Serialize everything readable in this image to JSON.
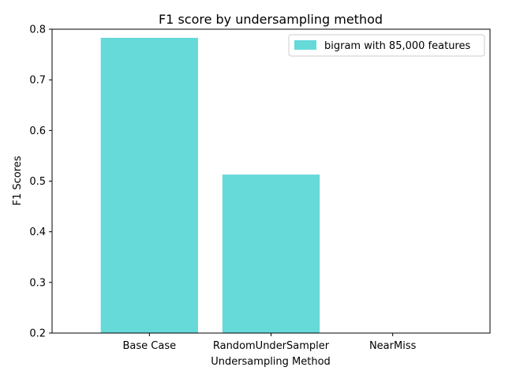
{
  "chart_data": {
    "type": "bar",
    "title": "F1 score by undersampling method",
    "xlabel": "Undersampling Method",
    "ylabel": "F1 Scores",
    "categories": [
      "Base Case",
      "RandomUnderSampler",
      "NearMiss"
    ],
    "series": [
      {
        "name": "bigram with 85,000 features",
        "values": [
          0.783,
          0.513,
          0.2
        ],
        "color": "#66d9d9"
      }
    ],
    "ylim": [
      0.2,
      0.8
    ],
    "yticks": [
      "0.2",
      "0.3",
      "0.4",
      "0.5",
      "0.6",
      "0.7",
      "0.8"
    ],
    "grid": false,
    "legend_position": "top-right"
  }
}
